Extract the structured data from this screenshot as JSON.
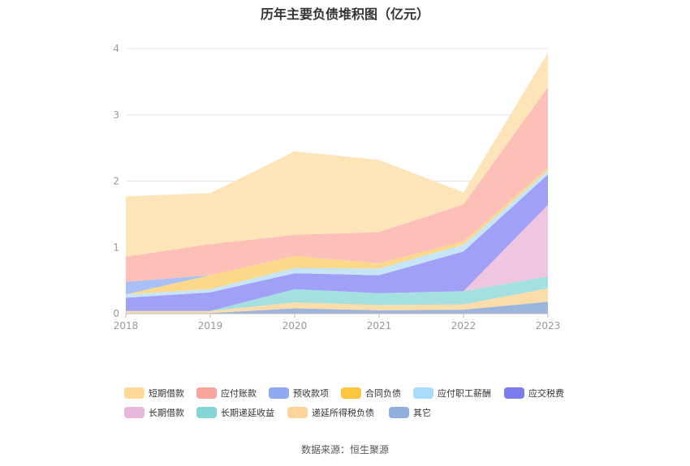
{
  "title": "历年主要负债堆积图（亿元）",
  "source": "数据来源：恒生聚源",
  "chart_data": {
    "type": "area",
    "stacked": true,
    "x": [
      "2018",
      "2019",
      "2020",
      "2021",
      "2022",
      "2023"
    ],
    "ylim": [
      0,
      4
    ],
    "yticks": [
      "0",
      "1",
      "2",
      "3",
      "4"
    ],
    "grid": true,
    "legend_position": "bottom",
    "series": [
      {
        "name": "其它",
        "color": "#9bb5dd",
        "values": [
          0.01,
          0.01,
          0.08,
          0.05,
          0.06,
          0.18
        ]
      },
      {
        "name": "递延所得税负债",
        "color": "#fcdca8",
        "values": [
          0.03,
          0.03,
          0.09,
          0.08,
          0.08,
          0.2
        ]
      },
      {
        "name": "长期递延收益",
        "color": "#a4e0e0",
        "values": [
          0.0,
          0.0,
          0.2,
          0.18,
          0.2,
          0.18
        ]
      },
      {
        "name": "长期借款",
        "color": "#eec6e0",
        "values": [
          0.0,
          0.0,
          0.0,
          0.0,
          0.0,
          1.08
        ]
      },
      {
        "name": "应交税费",
        "color": "#a0a0f6",
        "values": [
          0.2,
          0.28,
          0.24,
          0.27,
          0.6,
          0.46
        ]
      },
      {
        "name": "应付职工薪酬",
        "color": "#c6e6f8",
        "values": [
          0.05,
          0.05,
          0.08,
          0.1,
          0.1,
          0.06
        ]
      },
      {
        "name": "合同负债",
        "color": "#fcd88a",
        "values": [
          0.0,
          0.21,
          0.18,
          0.08,
          0.05,
          0.04
        ]
      },
      {
        "name": "预收款项",
        "color": "#a9c0f6",
        "values": [
          0.19,
          0.0,
          0.0,
          0.0,
          0.0,
          0.0
        ]
      },
      {
        "name": "应付账款",
        "color": "#fdc0b8",
        "values": [
          0.38,
          0.47,
          0.32,
          0.47,
          0.56,
          1.22
        ]
      },
      {
        "name": "短期借款",
        "color": "#fde5b9",
        "values": [
          0.91,
          0.77,
          1.26,
          1.09,
          0.18,
          0.52
        ]
      }
    ]
  },
  "legend": {
    "row1": [
      {
        "label": "短期借款",
        "color": "#fdd99a"
      },
      {
        "label": "应付账款",
        "color": "#f9a59c"
      },
      {
        "label": "预收款项",
        "color": "#8ea9f2"
      },
      {
        "label": "合同负债",
        "color": "#fcc73f"
      },
      {
        "label": "应付职工薪酬",
        "color": "#a8dcfa"
      },
      {
        "label": "应交税费",
        "color": "#7a7cee"
      }
    ],
    "row2": [
      {
        "label": "长期借款",
        "color": "#e8b6d8"
      },
      {
        "label": "长期递延收益",
        "color": "#84d6d6"
      },
      {
        "label": "递延所得税负债",
        "color": "#fdd59a"
      },
      {
        "label": "其它",
        "color": "#91aedc"
      }
    ]
  }
}
